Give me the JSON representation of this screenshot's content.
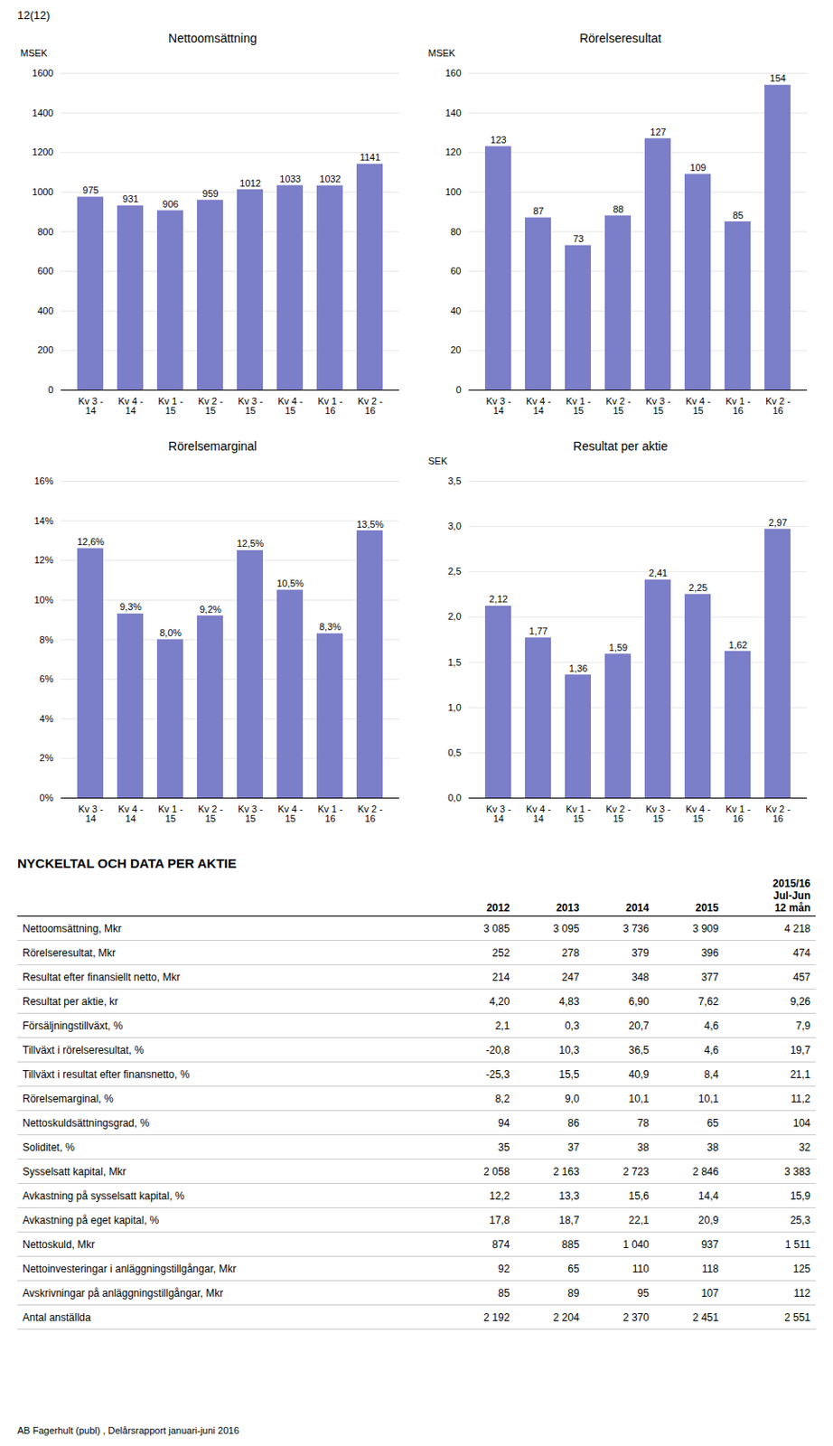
{
  "page_label": "12(12)",
  "footer": "AB Fagerhult (publ) , Delårsrapport januari-juni 2016",
  "chart_data": [
    {
      "type": "bar",
      "title": "Nettoomsättning",
      "ylabel": "MSEK",
      "categories": [
        "Kv 3 -\n14",
        "Kv 4 -\n14",
        "Kv 1 -\n15",
        "Kv 2 -\n15",
        "Kv 3 -\n15",
        "Kv 4 -\n15",
        "Kv 1 -\n16",
        "Kv 2 -\n16"
      ],
      "values": [
        975,
        931,
        906,
        959,
        1012,
        1033,
        1032,
        1141
      ],
      "color": "#7b7ec8",
      "ylim": [
        0,
        1600
      ],
      "yticks": [
        0,
        200,
        400,
        600,
        800,
        1000,
        1200,
        1400,
        1600
      ],
      "grid": true,
      "data_labels": true
    },
    {
      "type": "bar",
      "title": "Rörelseresultat",
      "ylabel": "MSEK",
      "categories": [
        "Kv 3 -\n14",
        "Kv 4 -\n14",
        "Kv 1 -\n15",
        "Kv 2 -\n15",
        "Kv 3 -\n15",
        "Kv 4 -\n15",
        "Kv 1 -\n16",
        "Kv 2 -\n16"
      ],
      "values": [
        123,
        87,
        73,
        88,
        127,
        109,
        85,
        154
      ],
      "color": "#7b7ec8",
      "ylim": [
        0,
        160
      ],
      "yticks": [
        0,
        20,
        40,
        60,
        80,
        100,
        120,
        140,
        160
      ],
      "grid": true,
      "data_labels": true
    },
    {
      "type": "bar",
      "title": "Rörelsemarginal",
      "categories": [
        "Kv 3 -\n14",
        "Kv 4 -\n14",
        "Kv 1 -\n15",
        "Kv 2 -\n15",
        "Kv 3 -\n15",
        "Kv 4 -\n15",
        "Kv 1 -\n16",
        "Kv 2 -\n16"
      ],
      "values": [
        12.6,
        9.3,
        8.0,
        9.2,
        12.5,
        10.5,
        8.3,
        13.5
      ],
      "value_labels": [
        "12,6%",
        "9,3%",
        "8,0%",
        "9,2%",
        "12,5%",
        "10,5%",
        "8,3%",
        "13,5%"
      ],
      "color": "#7b7ec8",
      "ylim": [
        0,
        16
      ],
      "yticks": [
        {
          "value": 0,
          "label": "0%"
        },
        {
          "value": 2,
          "label": "2%"
        },
        {
          "value": 4,
          "label": "4%"
        },
        {
          "value": 6,
          "label": "6%"
        },
        {
          "value": 8,
          "label": "8%"
        },
        {
          "value": 10,
          "label": "10%"
        },
        {
          "value": 12,
          "label": "12%"
        },
        {
          "value": 14,
          "label": "14%"
        },
        {
          "value": 16,
          "label": "16%"
        }
      ],
      "grid": true,
      "data_labels": true
    },
    {
      "type": "bar",
      "title": "Resultat per aktie",
      "ylabel": "SEK",
      "categories": [
        "Kv 3 -\n14",
        "Kv 4 -\n14",
        "Kv 1 -\n15",
        "Kv 2 -\n15",
        "Kv 3 -\n15",
        "Kv 4 -\n15",
        "Kv 1 -\n16",
        "Kv 2 -\n16"
      ],
      "values": [
        2.12,
        1.77,
        1.36,
        1.59,
        2.41,
        2.25,
        1.62,
        2.97
      ],
      "value_labels": [
        "2,12",
        "1,77",
        "1,36",
        "1,59",
        "2,41",
        "2,25",
        "1,62",
        "2,97"
      ],
      "color": "#7b7ec8",
      "ylim": [
        0,
        3.5
      ],
      "yticks": [
        {
          "value": 0.0,
          "label": "0,0"
        },
        {
          "value": 0.5,
          "label": "0,5"
        },
        {
          "value": 1.0,
          "label": "1,0"
        },
        {
          "value": 1.5,
          "label": "1,5"
        },
        {
          "value": 2.0,
          "label": "2,0"
        },
        {
          "value": 2.5,
          "label": "2,5"
        },
        {
          "value": 3.0,
          "label": "3,0"
        },
        {
          "value": 3.5,
          "label": "3,5"
        }
      ],
      "grid": true,
      "data_labels": true
    },
    {
      "type": "table",
      "title": "NYCKELTAL OCH DATA PER AKTIE",
      "columns": [
        "",
        "2012",
        "2013",
        "2014",
        "2015",
        "2015/16\nJul-Jun\n12 mån"
      ],
      "rows": [
        [
          "Nettoomsättning, Mkr",
          "3 085",
          "3 095",
          "3 736",
          "3 909",
          "4 218"
        ],
        [
          "Rörelseresultat, Mkr",
          "252",
          "278",
          "379",
          "396",
          "474"
        ],
        [
          "Resultat efter finansiellt netto, Mkr",
          "214",
          "247",
          "348",
          "377",
          "457"
        ],
        [
          "Resultat per aktie, kr",
          "4,20",
          "4,83",
          "6,90",
          "7,62",
          "9,26"
        ],
        [
          "Försäljningstillväxt, %",
          "2,1",
          "0,3",
          "20,7",
          "4,6",
          "7,9"
        ],
        [
          "Tillväxt i rörelseresultat, %",
          "-20,8",
          "10,3",
          "36,5",
          "4,6",
          "19,7"
        ],
        [
          "Tillväxt i resultat efter finansnetto, %",
          "-25,3",
          "15,5",
          "40,9",
          "8,4",
          "21,1"
        ],
        [
          "Rörelsemarginal, %",
          "8,2",
          "9,0",
          "10,1",
          "10,1",
          "11,2"
        ],
        [
          "Nettoskuldsättningsgrad, %",
          "94",
          "86",
          "78",
          "65",
          "104"
        ],
        [
          "Soliditet, %",
          "35",
          "37",
          "38",
          "38",
          "32"
        ],
        [
          "Sysselsatt kapital, Mkr",
          "2 058",
          "2 163",
          "2 723",
          "2 846",
          "3 383"
        ],
        [
          "Avkastning på sysselsatt kapital, %",
          "12,2",
          "13,3",
          "15,6",
          "14,4",
          "15,9"
        ],
        [
          "Avkastning på eget kapital, %",
          "17,8",
          "18,7",
          "22,1",
          "20,9",
          "25,3"
        ],
        [
          "Nettoskuld, Mkr",
          "874",
          "885",
          "1 040",
          "937",
          "1 511"
        ],
        [
          "Nettoinvesteringar i anläggningstillgångar, Mkr",
          "92",
          "65",
          "110",
          "118",
          "125"
        ],
        [
          "Avskrivningar på anläggningstillgångar, Mkr",
          "85",
          "89",
          "95",
          "107",
          "112"
        ],
        [
          "Antal anställda",
          "2 192",
          "2 204",
          "2 370",
          "2 451",
          "2 551"
        ]
      ]
    }
  ]
}
